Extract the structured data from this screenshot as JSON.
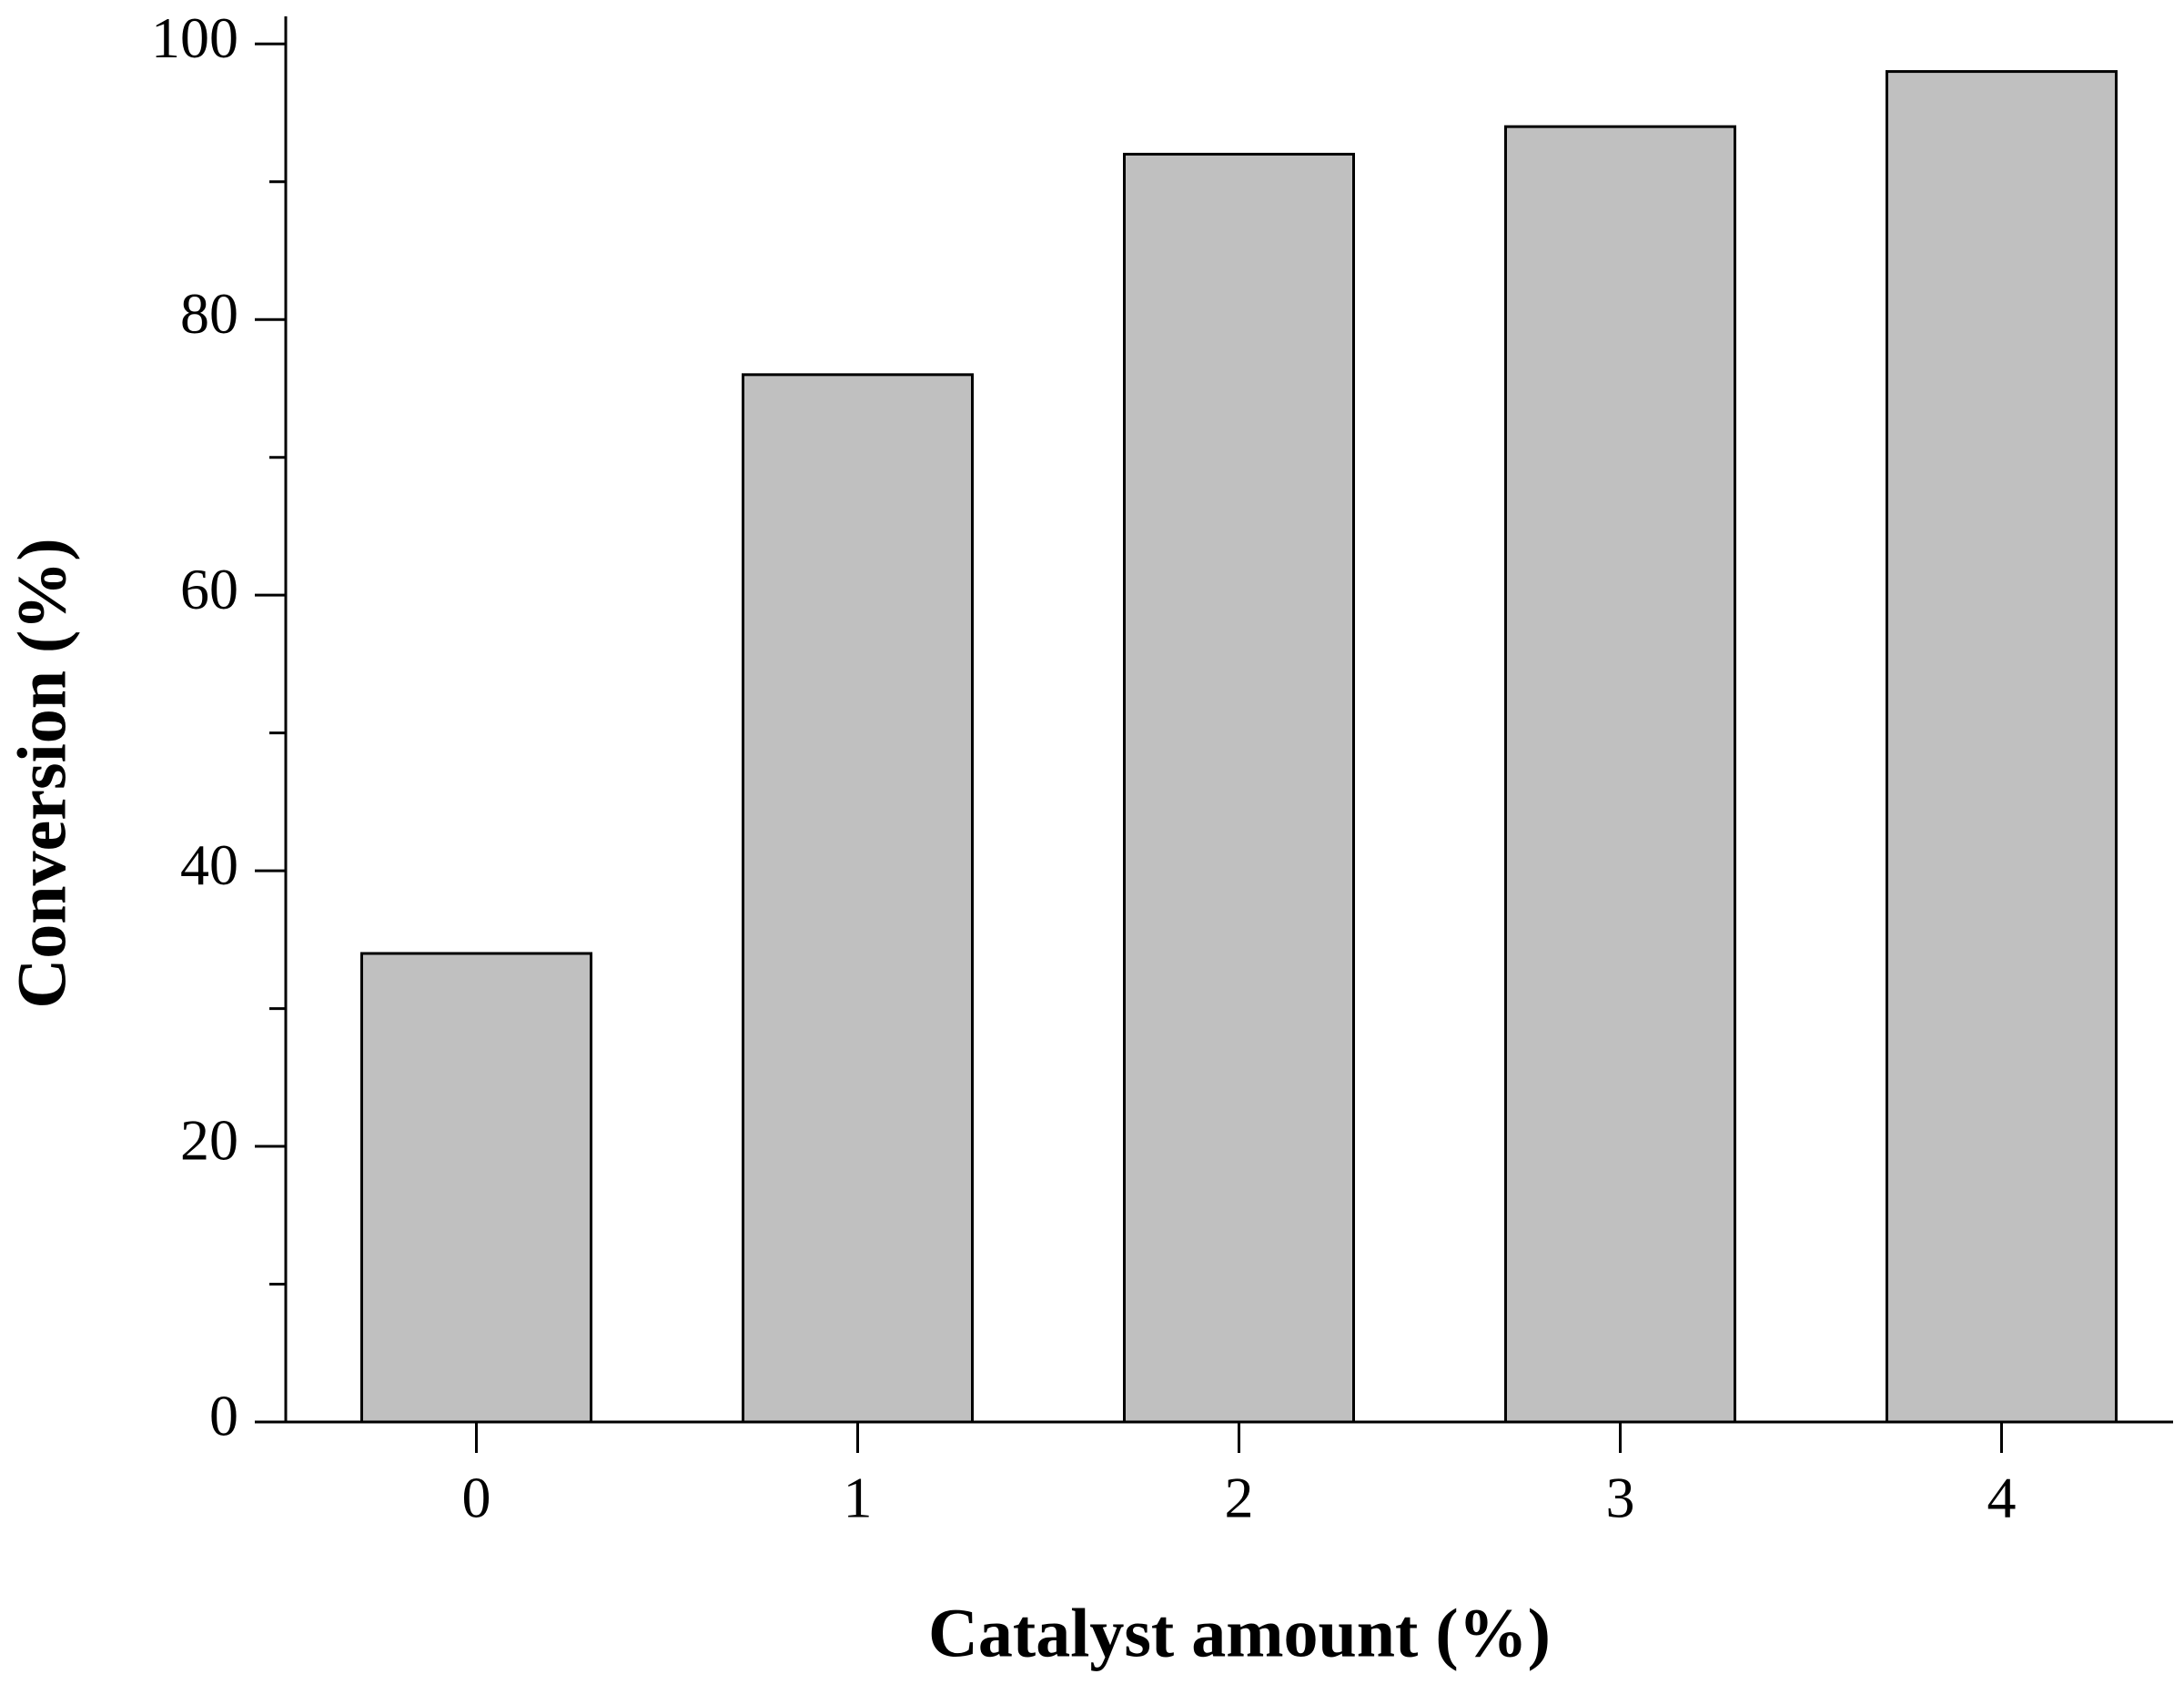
{
  "chart_data": {
    "type": "bar",
    "x_label": "Catalyst amount (%)",
    "y_label": "Conversion (%)",
    "categories": [
      "0",
      "1",
      "2",
      "3",
      "4"
    ],
    "values": [
      34,
      76,
      92,
      94,
      98
    ],
    "color": "#c0c0c0",
    "ylim": [
      0,
      102
    ],
    "yticks": [
      0,
      20,
      40,
      60,
      80,
      100
    ],
    "minor_yticks": [
      10,
      30,
      50,
      70,
      90
    ],
    "grid": false
  }
}
